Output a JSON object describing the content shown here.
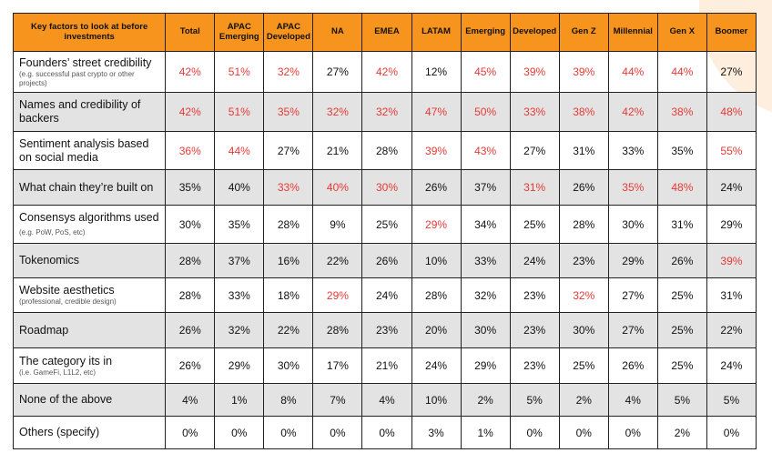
{
  "columns": [
    "Key factors to look at before investments",
    "Total",
    "APAC Emerging",
    "APAC Developed",
    "NA",
    "EMEA",
    "LATAM",
    "Emerging",
    "Developed",
    "Gen Z",
    "Millennial",
    "Gen X",
    "Boomer"
  ],
  "rows": [
    {
      "label": "Founders’ street credibility",
      "sub": "(e.g. successful past crypto or other projects)",
      "sub_inline": false,
      "shade": false,
      "h": 45,
      "values": [
        "42%",
        "51%",
        "32%",
        "27%",
        "42%",
        "12%",
        "45%",
        "39%",
        "39%",
        "44%",
        "44%",
        "27%"
      ],
      "highlight": [
        true,
        true,
        true,
        false,
        true,
        false,
        true,
        true,
        true,
        true,
        true,
        false
      ]
    },
    {
      "label": "Names and credibility of backers",
      "sub": "",
      "sub_inline": false,
      "shade": true,
      "h": 43,
      "values": [
        "42%",
        "51%",
        "35%",
        "32%",
        "32%",
        "47%",
        "50%",
        "33%",
        "38%",
        "42%",
        "38%",
        "48%"
      ],
      "highlight": [
        true,
        true,
        true,
        true,
        true,
        true,
        true,
        true,
        true,
        true,
        true,
        true
      ]
    },
    {
      "label": "Sentiment analysis based on social media",
      "sub": "",
      "sub_inline": false,
      "shade": false,
      "h": 42,
      "values": [
        "36%",
        "44%",
        "27%",
        "21%",
        "28%",
        "39%",
        "43%",
        "27%",
        "31%",
        "33%",
        "35%",
        "55%"
      ],
      "highlight": [
        true,
        true,
        false,
        false,
        false,
        true,
        true,
        false,
        false,
        false,
        false,
        true
      ]
    },
    {
      "label": "What chain they’re built on",
      "sub": "",
      "sub_inline": false,
      "shade": true,
      "h": 39,
      "values": [
        "35%",
        "40%",
        "33%",
        "40%",
        "30%",
        "26%",
        "37%",
        "31%",
        "26%",
        "35%",
        "48%",
        "24%"
      ],
      "highlight": [
        false,
        false,
        true,
        true,
        true,
        false,
        false,
        true,
        false,
        true,
        true,
        false
      ]
    },
    {
      "label": "Consensys algorithms used",
      "sub": "(e.g. PoW, PoS, etc)",
      "sub_inline": true,
      "shade": false,
      "h": 42,
      "values": [
        "30%",
        "35%",
        "28%",
        "9%",
        "25%",
        "29%",
        "34%",
        "25%",
        "28%",
        "30%",
        "31%",
        "29%"
      ],
      "highlight": [
        false,
        false,
        false,
        false,
        false,
        true,
        false,
        false,
        false,
        false,
        false,
        false
      ]
    },
    {
      "label": "Tokenomics",
      "sub": "",
      "sub_inline": false,
      "shade": true,
      "h": 38,
      "values": [
        "28%",
        "37%",
        "16%",
        "22%",
        "26%",
        "10%",
        "33%",
        "24%",
        "23%",
        "29%",
        "26%",
        "39%"
      ],
      "highlight": [
        false,
        false,
        false,
        false,
        false,
        false,
        false,
        false,
        false,
        false,
        false,
        true
      ]
    },
    {
      "label": "Website aesthetics",
      "sub": "(professional, credible design)",
      "sub_inline": false,
      "shade": false,
      "h": 38,
      "values": [
        "28%",
        "33%",
        "18%",
        "29%",
        "24%",
        "28%",
        "32%",
        "23%",
        "32%",
        "27%",
        "25%",
        "31%"
      ],
      "highlight": [
        false,
        false,
        false,
        true,
        false,
        false,
        false,
        false,
        true,
        false,
        false,
        false
      ]
    },
    {
      "label": "Roadmap",
      "sub": "",
      "sub_inline": false,
      "shade": true,
      "h": 39,
      "values": [
        "26%",
        "32%",
        "22%",
        "28%",
        "23%",
        "20%",
        "30%",
        "23%",
        "30%",
        "27%",
        "25%",
        "22%"
      ],
      "highlight": [
        false,
        false,
        false,
        false,
        false,
        false,
        false,
        false,
        false,
        false,
        false,
        false
      ]
    },
    {
      "label": "The category its in",
      "sub": "(i.e. GameFi, L1L2, etc)",
      "sub_inline": false,
      "shade": false,
      "h": 39,
      "values": [
        "26%",
        "29%",
        "30%",
        "17%",
        "21%",
        "24%",
        "29%",
        "23%",
        "25%",
        "26%",
        "25%",
        "24%"
      ],
      "highlight": [
        false,
        false,
        false,
        false,
        false,
        false,
        false,
        false,
        false,
        false,
        false,
        false
      ]
    },
    {
      "label": "None of the above",
      "sub": "",
      "sub_inline": false,
      "shade": true,
      "h": 36,
      "values": [
        "4%",
        "1%",
        "8%",
        "7%",
        "4%",
        "10%",
        "2%",
        "5%",
        "2%",
        "4%",
        "5%",
        "5%"
      ],
      "highlight": [
        false,
        false,
        false,
        false,
        false,
        false,
        false,
        false,
        false,
        false,
        false,
        false
      ]
    },
    {
      "label": "Others (specify)",
      "sub": "",
      "sub_inline": false,
      "shade": false,
      "h": 36,
      "values": [
        "0%",
        "0%",
        "0%",
        "0%",
        "0%",
        "3%",
        "1%",
        "0%",
        "0%",
        "0%",
        "2%",
        "0%"
      ],
      "highlight": [
        false,
        false,
        false,
        false,
        false,
        false,
        false,
        false,
        false,
        false,
        false,
        false
      ]
    }
  ],
  "colors": {
    "header": "#f7941d",
    "highlight": "#e53935",
    "shade": "#e3e3e3"
  }
}
